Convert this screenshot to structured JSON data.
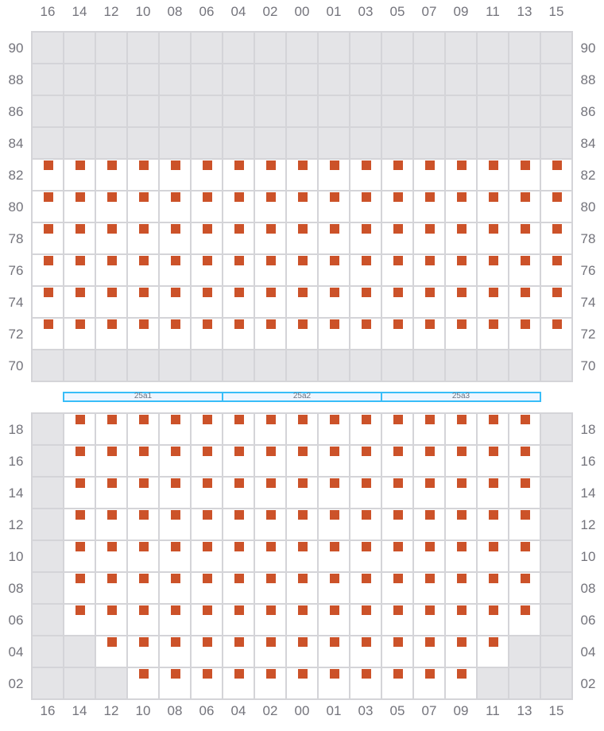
{
  "columns": [
    "16",
    "14",
    "12",
    "10",
    "08",
    "06",
    "04",
    "02",
    "00",
    "01",
    "03",
    "05",
    "07",
    "09",
    "11",
    "13",
    "15"
  ],
  "colors": {
    "seat": "#cc5229",
    "blocked": "#e4e4e7",
    "open": "#ffffff",
    "grid": "#d4d4d8",
    "section_border": "#38bdf8",
    "section_fill": "#eff6ff"
  },
  "top_block": {
    "rows": [
      {
        "label": "90",
        "seats": []
      },
      {
        "label": "88",
        "seats": []
      },
      {
        "label": "86",
        "seats": []
      },
      {
        "label": "84",
        "seats": []
      },
      {
        "label": "82",
        "seats": [
          "16",
          "14",
          "12",
          "10",
          "08",
          "06",
          "04",
          "02",
          "00",
          "01",
          "03",
          "05",
          "07",
          "09",
          "11",
          "13",
          "15"
        ]
      },
      {
        "label": "80",
        "seats": [
          "16",
          "14",
          "12",
          "10",
          "08",
          "06",
          "04",
          "02",
          "00",
          "01",
          "03",
          "05",
          "07",
          "09",
          "11",
          "13",
          "15"
        ]
      },
      {
        "label": "78",
        "seats": [
          "16",
          "14",
          "12",
          "10",
          "08",
          "06",
          "04",
          "02",
          "00",
          "01",
          "03",
          "05",
          "07",
          "09",
          "11",
          "13",
          "15"
        ]
      },
      {
        "label": "76",
        "seats": [
          "16",
          "14",
          "12",
          "10",
          "08",
          "06",
          "04",
          "02",
          "00",
          "01",
          "03",
          "05",
          "07",
          "09",
          "11",
          "13",
          "15"
        ]
      },
      {
        "label": "74",
        "seats": [
          "16",
          "14",
          "12",
          "10",
          "08",
          "06",
          "04",
          "02",
          "00",
          "01",
          "03",
          "05",
          "07",
          "09",
          "11",
          "13",
          "15"
        ]
      },
      {
        "label": "72",
        "seats": [
          "16",
          "14",
          "12",
          "10",
          "08",
          "06",
          "04",
          "02",
          "00",
          "01",
          "03",
          "05",
          "07",
          "09",
          "11",
          "13",
          "15"
        ]
      },
      {
        "label": "70",
        "seats": []
      }
    ]
  },
  "sections": [
    "25a1",
    "25a2",
    "25a3"
  ],
  "bottom_block": {
    "rows": [
      {
        "label": "18",
        "seats": [
          "14",
          "12",
          "10",
          "08",
          "06",
          "04",
          "02",
          "00",
          "01",
          "03",
          "05",
          "07",
          "09",
          "11",
          "13"
        ]
      },
      {
        "label": "16",
        "seats": [
          "14",
          "12",
          "10",
          "08",
          "06",
          "04",
          "02",
          "00",
          "01",
          "03",
          "05",
          "07",
          "09",
          "11",
          "13"
        ]
      },
      {
        "label": "14",
        "seats": [
          "14",
          "12",
          "10",
          "08",
          "06",
          "04",
          "02",
          "00",
          "01",
          "03",
          "05",
          "07",
          "09",
          "11",
          "13"
        ]
      },
      {
        "label": "12",
        "seats": [
          "14",
          "12",
          "10",
          "08",
          "06",
          "04",
          "02",
          "00",
          "01",
          "03",
          "05",
          "07",
          "09",
          "11",
          "13"
        ]
      },
      {
        "label": "10",
        "seats": [
          "14",
          "12",
          "10",
          "08",
          "06",
          "04",
          "02",
          "00",
          "01",
          "03",
          "05",
          "07",
          "09",
          "11",
          "13"
        ]
      },
      {
        "label": "08",
        "seats": [
          "14",
          "12",
          "10",
          "08",
          "06",
          "04",
          "02",
          "00",
          "01",
          "03",
          "05",
          "07",
          "09",
          "11",
          "13"
        ]
      },
      {
        "label": "06",
        "seats": [
          "14",
          "12",
          "10",
          "08",
          "06",
          "04",
          "02",
          "00",
          "01",
          "03",
          "05",
          "07",
          "09",
          "11",
          "13"
        ]
      },
      {
        "label": "04",
        "seats": [
          "12",
          "10",
          "08",
          "06",
          "04",
          "02",
          "00",
          "01",
          "03",
          "05",
          "07",
          "09",
          "11"
        ]
      },
      {
        "label": "02",
        "seats": [
          "10",
          "08",
          "06",
          "04",
          "02",
          "00",
          "01",
          "03",
          "05",
          "07",
          "09"
        ]
      }
    ]
  }
}
